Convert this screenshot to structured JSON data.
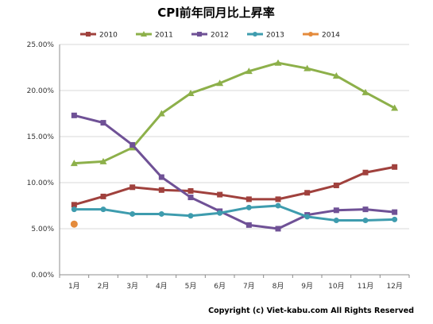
{
  "chart_data": {
    "type": "line",
    "title": "CPI前年同月比上昇率",
    "categories": [
      "1月",
      "2月",
      "3月",
      "4月",
      "5月",
      "6月",
      "7月",
      "8月",
      "9月",
      "10月",
      "11月",
      "12月"
    ],
    "ylim": [
      0,
      25
    ],
    "yticks": [
      "0.00%",
      "5.00%",
      "10.00%",
      "15.00%",
      "20.00%",
      "25.00%"
    ],
    "grid": true,
    "legend_position": "top",
    "series": [
      {
        "name": "2010",
        "color": "#A0413D",
        "marker": "square",
        "values": [
          7.6,
          8.5,
          9.5,
          9.2,
          9.1,
          8.7,
          8.2,
          8.2,
          8.9,
          9.7,
          11.1,
          11.7
        ]
      },
      {
        "name": "2011",
        "color": "#8DB04A",
        "marker": "triangle",
        "values": [
          12.1,
          12.3,
          13.8,
          17.5,
          19.7,
          20.8,
          22.1,
          23.0,
          22.4,
          21.6,
          19.8,
          18.1
        ]
      },
      {
        "name": "2012",
        "color": "#6F5196",
        "marker": "square",
        "values": [
          17.3,
          16.5,
          14.1,
          10.6,
          8.4,
          6.9,
          5.4,
          5.0,
          6.5,
          7.0,
          7.1,
          6.8
        ]
      },
      {
        "name": "2013",
        "color": "#3E9CAE",
        "marker": "circle",
        "values": [
          7.1,
          7.1,
          6.6,
          6.6,
          6.4,
          6.7,
          7.3,
          7.5,
          6.3,
          5.9,
          5.9,
          6.0
        ]
      },
      {
        "name": "2014",
        "color": "#E48B3C",
        "marker": "circle",
        "values": [
          5.5,
          null,
          null,
          null,
          null,
          null,
          null,
          null,
          null,
          null,
          null,
          null
        ]
      }
    ],
    "footer": "Copyright (c) Viet-kabu.com All Rights Reserved"
  }
}
